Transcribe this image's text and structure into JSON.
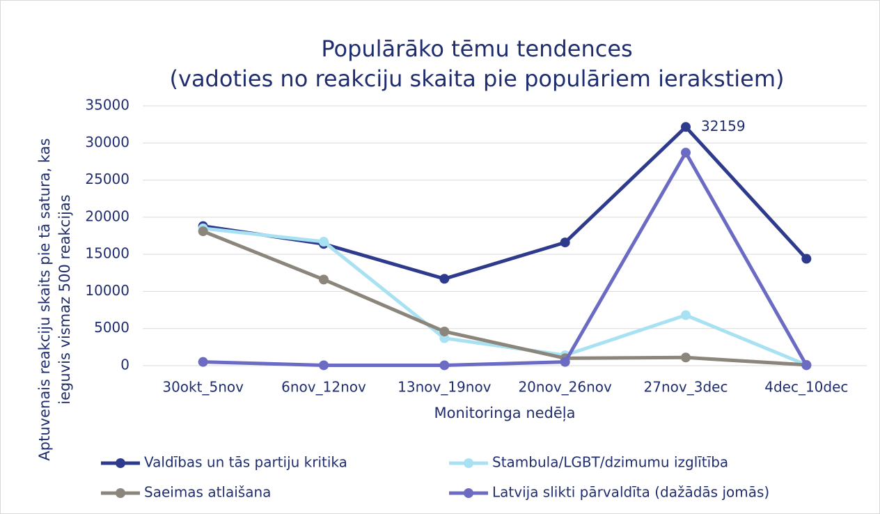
{
  "chart_data": {
    "type": "line",
    "title": [
      "Populārāko tēmu tendences",
      "(vadoties no reakciju skaita pie populāriem ierakstiem)"
    ],
    "ylabel": [
      "Aptuvenais reakciju skaits pie tā satura, kas",
      "ieguvis vismaz 500 reakcijas"
    ],
    "xlabel": "Monitoringa nedēļa",
    "categories": [
      "30okt_5nov",
      "6nov_12nov",
      "13nov_19nov",
      "20nov_26nov",
      "27nov_3dec",
      "4dec_10dec"
    ],
    "series": [
      {
        "name": "Valdības un tās partiju kritika",
        "color": "#2e3a8c",
        "values": [
          18800,
          16400,
          11700,
          16600,
          32159,
          14400
        ]
      },
      {
        "name": "Stambula/LGBT/dzimumu izglītība",
        "color": "#a8e2f2",
        "values": [
          18500,
          16700,
          3700,
          1400,
          6800,
          100
        ]
      },
      {
        "name": "Saeimas atlaišana",
        "color": "#8c857b",
        "values": [
          18100,
          11600,
          4600,
          1000,
          1100,
          100
        ]
      },
      {
        "name": "Latvija slikti pārvaldīta (dažādās jomās)",
        "color": "#6b6bc4",
        "values": [
          500,
          50,
          50,
          500,
          28700,
          50
        ]
      }
    ],
    "ylim": [
      0,
      35000
    ],
    "yticks": [
      0,
      5000,
      10000,
      15000,
      20000,
      25000,
      30000,
      35000
    ],
    "grid": true,
    "legend": "bottom"
  }
}
